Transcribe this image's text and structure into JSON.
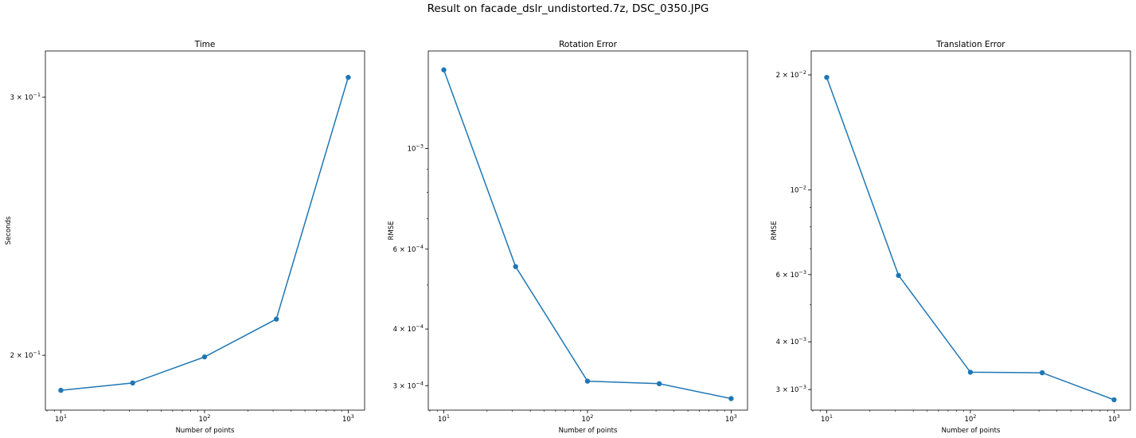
{
  "figure": {
    "title": "Result on facade_dslr_undistorted.7z, DSC_0350.JPG"
  },
  "chart_data": [
    {
      "type": "line",
      "title": "Time",
      "xlabel": "Number of points",
      "ylabel": "Seconds",
      "xscale": "log",
      "yscale": "log",
      "xlim": [
        7.8,
        1300
      ],
      "ylim": [
        0.1835,
        0.3226
      ],
      "grid": false,
      "marker": "circle",
      "color": "#1f77b4",
      "x": [
        10,
        31.6,
        100,
        316,
        1000
      ],
      "values": [
        0.1893,
        0.1915,
        0.1995,
        0.2117,
        0.3095
      ],
      "major_ticks": [
        {
          "value": 10,
          "base": "10",
          "exp": "1"
        },
        {
          "value": 100,
          "base": "10",
          "exp": "2"
        },
        {
          "value": 1000,
          "base": "10",
          "exp": "3"
        }
      ],
      "y_ticks": [
        {
          "value": 0.3,
          "mant": "3 × 10",
          "exp": "−1"
        },
        {
          "value": 0.2,
          "mant": "2 × 10",
          "exp": "−1"
        }
      ],
      "y_minor_ticks": [
        0.3,
        0.2
      ]
    },
    {
      "type": "line",
      "title": "Rotation Error",
      "xlabel": "Number of points",
      "ylabel": "RMSE",
      "xscale": "log",
      "yscale": "log",
      "xlim": [
        7.8,
        1300
      ],
      "ylim": [
        0.000265,
        0.00164
      ],
      "grid": false,
      "marker": "circle",
      "color": "#1f77b4",
      "x": [
        10,
        31.6,
        100,
        316,
        1000
      ],
      "values": [
        0.00149,
        0.000549,
        0.000307,
        0.000303,
        0.000281
      ],
      "major_ticks": [
        {
          "value": 10,
          "base": "10",
          "exp": "1"
        },
        {
          "value": 100,
          "base": "10",
          "exp": "2"
        },
        {
          "value": 1000,
          "base": "10",
          "exp": "3"
        }
      ],
      "y_ticks": [
        {
          "value": 0.001,
          "mant": "10",
          "exp": "−3"
        },
        {
          "value": 0.0006,
          "mant": "6 × 10",
          "exp": "−4"
        },
        {
          "value": 0.0004,
          "mant": "4 × 10",
          "exp": "−4"
        },
        {
          "value": 0.0003,
          "mant": "3 × 10",
          "exp": "−4"
        }
      ],
      "y_minor_ticks": [
        0.0003,
        0.0004,
        0.0005,
        0.0006,
        0.0007,
        0.0008,
        0.0009
      ]
    },
    {
      "type": "line",
      "title": "Translation Error",
      "xlabel": "Number of points",
      "ylabel": "RMSE",
      "xscale": "log",
      "yscale": "log",
      "xlim": [
        7.8,
        1300
      ],
      "ylim": [
        0.00265,
        0.0231
      ],
      "grid": false,
      "marker": "circle",
      "color": "#1f77b4",
      "x": [
        10,
        31.6,
        100,
        316,
        1000
      ],
      "values": [
        0.0197,
        0.00597,
        0.00333,
        0.00332,
        0.00282
      ],
      "major_ticks": [
        {
          "value": 10,
          "base": "10",
          "exp": "1"
        },
        {
          "value": 100,
          "base": "10",
          "exp": "2"
        },
        {
          "value": 1000,
          "base": "10",
          "exp": "3"
        }
      ],
      "y_ticks": [
        {
          "value": 0.02,
          "mant": "2 × 10",
          "exp": "−2"
        },
        {
          "value": 0.01,
          "mant": "10",
          "exp": "−2"
        },
        {
          "value": 0.006,
          "mant": "6 × 10",
          "exp": "−3"
        },
        {
          "value": 0.004,
          "mant": "4 × 10",
          "exp": "−3"
        },
        {
          "value": 0.003,
          "mant": "3 × 10",
          "exp": "−3"
        }
      ],
      "y_minor_ticks": [
        0.003,
        0.004,
        0.005,
        0.006,
        0.007,
        0.008,
        0.009,
        0.02
      ]
    }
  ]
}
